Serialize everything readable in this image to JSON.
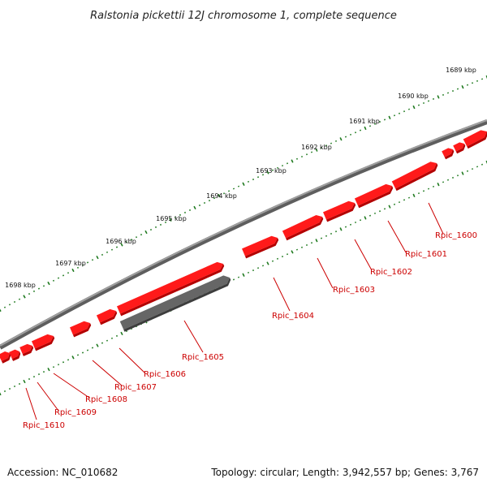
{
  "title": "Ralstonia pickettii 12J chromosome 1, complete sequence",
  "footer": {
    "accession": "Accession: NC_010682",
    "summary": "Topology: circular; Length: 3,942,557 bp; Genes: 3,767"
  },
  "kbp_labels": [
    "1689 kbp",
    "1690 kbp",
    "1691 kbp",
    "1692 kbp",
    "1693 kbp",
    "1694 kbp",
    "1695 kbp",
    "1696 kbp",
    "1697 kbp",
    "1698 kbp"
  ],
  "genes": [
    {
      "name": "Rpic_1600"
    },
    {
      "name": "Rpic_1601"
    },
    {
      "name": "Rpic_1602"
    },
    {
      "name": "Rpic_1603"
    },
    {
      "name": "Rpic_1604"
    },
    {
      "name": "Rpic_1605"
    },
    {
      "name": "Rpic_1606"
    },
    {
      "name": "Rpic_1607"
    },
    {
      "name": "Rpic_1608"
    },
    {
      "name": "Rpic_1609"
    },
    {
      "name": "Rpic_1610"
    }
  ],
  "colors": {
    "gene": "#ff1a1a",
    "gene_dark": "#b30000",
    "pseudo": "#666666",
    "ticks": "#1f7a1f",
    "backbone": "#888888",
    "label": "#cc0000"
  }
}
